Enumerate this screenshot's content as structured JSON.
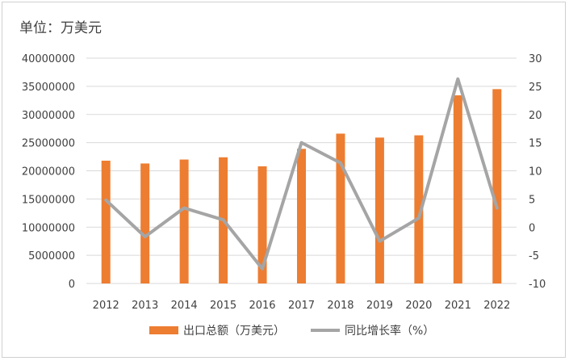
{
  "chart_data": {
    "type": "bar",
    "unit_label": "单位：万美元",
    "categories": [
      "2012",
      "2013",
      "2014",
      "2015",
      "2016",
      "2017",
      "2018",
      "2019",
      "2020",
      "2021",
      "2022"
    ],
    "series": [
      {
        "name": "出口总额（万美元）",
        "type": "bar",
        "axis": "left",
        "color": "#ed7d31",
        "values": [
          21800000,
          21300000,
          22000000,
          22400000,
          20800000,
          23900000,
          26600000,
          25900000,
          26300000,
          33400000,
          34500000
        ]
      },
      {
        "name": "同比增长率（%）",
        "type": "line",
        "axis": "right",
        "color": "#a5a5a5",
        "values": [
          4.8,
          -1.7,
          3.4,
          1.3,
          -7.4,
          15.0,
          11.4,
          -2.5,
          1.6,
          26.3,
          3.4
        ]
      }
    ],
    "y_left": {
      "min": 0,
      "max": 40000000,
      "step": 5000000,
      "tick_labels": [
        "0",
        "5000000",
        "10000000",
        "15000000",
        "20000000",
        "25000000",
        "30000000",
        "35000000",
        "40000000"
      ]
    },
    "y_right": {
      "min": -10,
      "max": 30,
      "step": 5,
      "tick_labels": [
        "-10",
        "-5",
        "0",
        "5",
        "10",
        "15",
        "20",
        "25",
        "30"
      ]
    },
    "grid": true,
    "legend_position": "bottom"
  }
}
